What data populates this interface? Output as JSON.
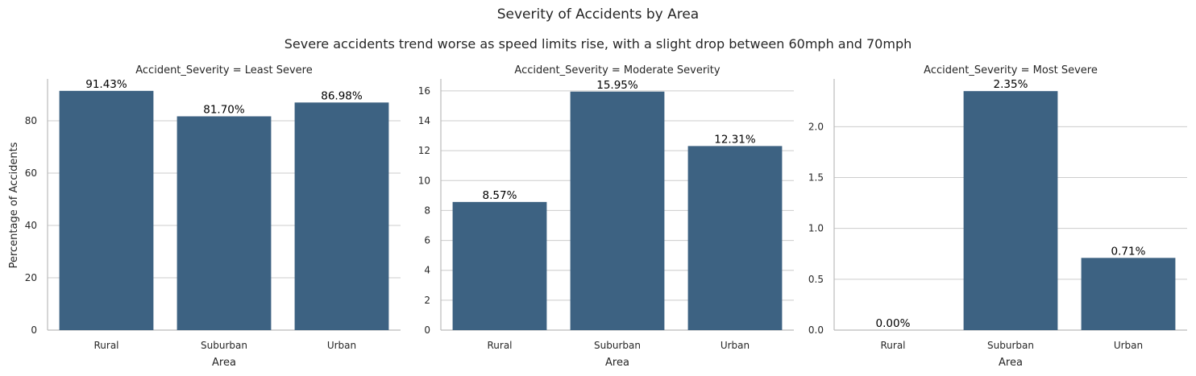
{
  "title": "Severity of Accidents by Area",
  "subtitle": "Severe accidents trend worse as speed limits rise, with a slight drop between 60mph and 70mph",
  "ylabel": "Percentage of Accidents",
  "colors": {
    "bar": "#3d6282",
    "grid": "#cccccc",
    "axis": "#bbbbbb"
  },
  "chart_data": [
    {
      "type": "bar",
      "title": "Accident_Severity = Least Severe",
      "categories": [
        "Rural",
        "Suburban",
        "Urban"
      ],
      "values": [
        91.43,
        81.7,
        86.98
      ],
      "data_labels": [
        "91.43%",
        "81.70%",
        "86.98%"
      ],
      "xlabel": "Area",
      "ylabel": "Percentage of Accidents",
      "ylim": [
        0,
        96
      ],
      "yticks": [
        0,
        20,
        40,
        60,
        80
      ],
      "ytick_labels": [
        "0",
        "20",
        "40",
        "60",
        "80"
      ],
      "grid": true
    },
    {
      "type": "bar",
      "title": "Accident_Severity = Moderate Severity",
      "categories": [
        "Rural",
        "Suburban",
        "Urban"
      ],
      "values": [
        8.57,
        15.95,
        12.31
      ],
      "data_labels": [
        "8.57%",
        "15.95%",
        "12.31%"
      ],
      "xlabel": "Area",
      "ylabel": "",
      "ylim": [
        0,
        16.8
      ],
      "yticks": [
        0,
        2,
        4,
        6,
        8,
        10,
        12,
        14,
        16
      ],
      "ytick_labels": [
        "0",
        "2",
        "4",
        "6",
        "8",
        "10",
        "12",
        "14",
        "16"
      ],
      "grid": true
    },
    {
      "type": "bar",
      "title": "Accident_Severity = Most Severe",
      "categories": [
        "Rural",
        "Suburban",
        "Urban"
      ],
      "values": [
        0.0,
        2.35,
        0.71
      ],
      "data_labels": [
        "0.00%",
        "2.35%",
        "0.71%"
      ],
      "xlabel": "Area",
      "ylabel": "",
      "ylim": [
        0,
        2.47
      ],
      "yticks": [
        0.0,
        0.5,
        1.0,
        1.5,
        2.0
      ],
      "ytick_labels": [
        "0.0",
        "0.5",
        "1.0",
        "1.5",
        "2.0"
      ],
      "grid": true
    }
  ]
}
